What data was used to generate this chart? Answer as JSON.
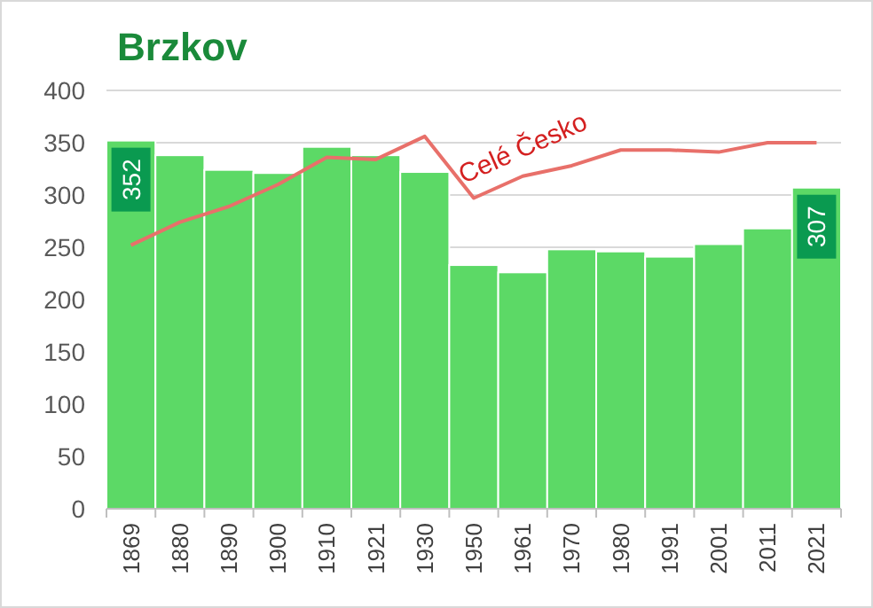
{
  "chart_data": {
    "type": "bar",
    "title": "Brzkov",
    "categories": [
      "1869",
      "1880",
      "1890",
      "1900",
      "1910",
      "1921",
      "1930",
      "1950",
      "1961",
      "1970",
      "1980",
      "1991",
      "2001",
      "2011",
      "2021"
    ],
    "series": [
      {
        "color": "#5cd966",
        "values": [
          352,
          338,
          324,
          321,
          346,
          338,
          322,
          233,
          226,
          248,
          246,
          241,
          253,
          268,
          307
        ],
        "value_labels": [
          "352",
          null,
          null,
          null,
          null,
          null,
          null,
          null,
          null,
          null,
          null,
          null,
          null,
          null,
          "307"
        ]
      },
      {
        "type": "line",
        "name": "Celé Česko",
        "color": "#e8706a",
        "values": [
          252,
          274,
          289,
          310,
          336,
          334,
          356,
          297,
          318,
          328,
          343,
          343,
          341,
          350,
          350
        ]
      }
    ],
    "ylim": [
      0,
      400
    ],
    "yticks": [
      0,
      50,
      100,
      150,
      200,
      250,
      300,
      350,
      400
    ],
    "grid": "y"
  }
}
